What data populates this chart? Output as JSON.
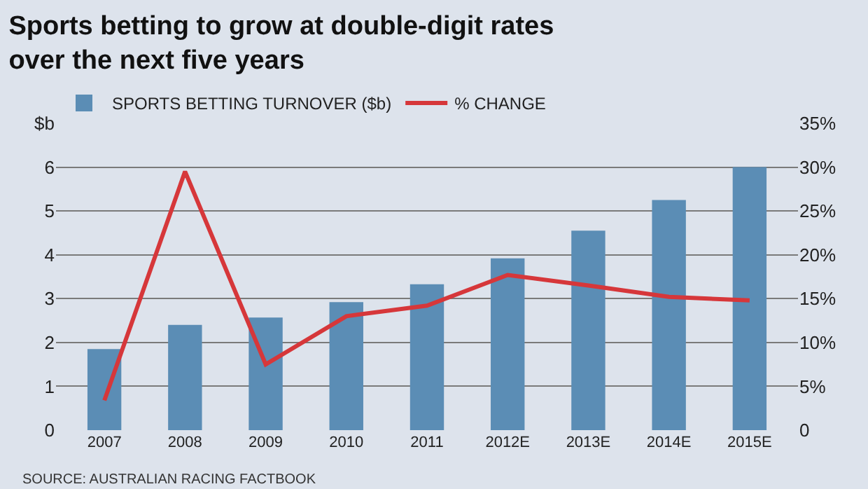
{
  "chart_data": {
    "type": "bar",
    "title": "Sports betting to grow at double-digit rates\nover the next five years",
    "categories": [
      "2007",
      "2008",
      "2009",
      "2010",
      "2011",
      "2012E",
      "2013E",
      "2014E",
      "2015E"
    ],
    "series": [
      {
        "name": "SPORTS BETTING TURNOVER ($b)",
        "color": "#5b8db5",
        "values": [
          1.85,
          2.4,
          2.57,
          2.92,
          3.33,
          3.92,
          4.55,
          5.25,
          6.0
        ]
      },
      {
        "name": "% CHANGE",
        "type": "line",
        "axis": "y2",
        "color": "#d6373a",
        "marker": "none",
        "line_style": "solid",
        "values": [
          3.4,
          29.5,
          7.5,
          13,
          14.2,
          17.7,
          16.5,
          15.2,
          14.8
        ]
      }
    ],
    "ylim": [
      0,
      7
    ],
    "yticks": [
      0,
      1,
      2,
      3,
      4,
      5,
      6,
      {
        "value": 7,
        "label": "$b"
      }
    ],
    "y2lim": [
      0,
      35
    ],
    "y2ticks": [
      0,
      {
        "value": 5,
        "label": "5%"
      },
      {
        "value": 10,
        "label": "10%"
      },
      {
        "value": 15,
        "label": "15%"
      },
      {
        "value": 20,
        "label": "20%"
      },
      {
        "value": 25,
        "label": "25%"
      },
      {
        "value": 30,
        "label": "30%"
      },
      {
        "value": 35,
        "label": "35%"
      }
    ],
    "grid": "y",
    "legend": "top",
    "annotations": [
      "SOURCE: AUSTRALIAN RACING FACTBOOK"
    ]
  }
}
